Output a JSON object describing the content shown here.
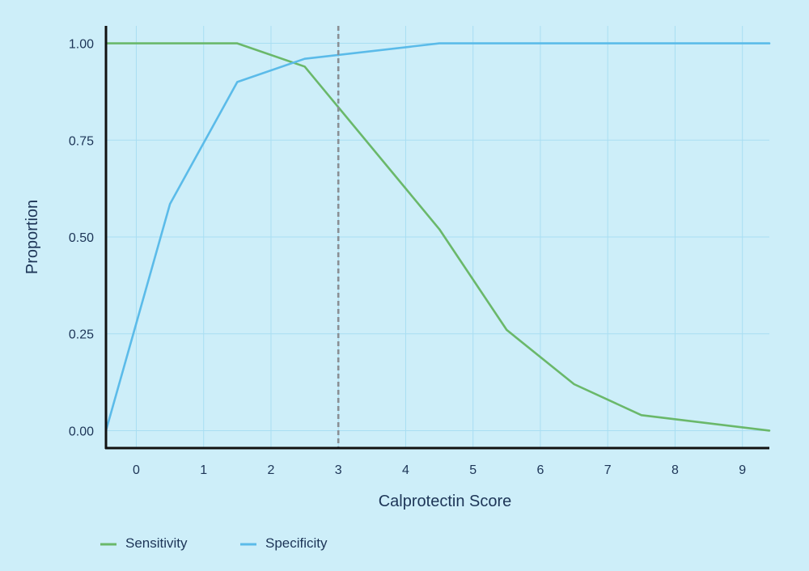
{
  "chart_data": {
    "type": "line",
    "title": "",
    "xlabel": "Calprotectin Score",
    "ylabel": "Proportion",
    "xlim": [
      -0.45,
      9.4
    ],
    "ylim": [
      -0.045,
      1.045
    ],
    "xticks": [
      0,
      1,
      2,
      3,
      4,
      5,
      6,
      7,
      8,
      9
    ],
    "xtick_labels": [
      "0",
      "1",
      "2",
      "3",
      "4",
      "5",
      "6",
      "7",
      "8",
      "9"
    ],
    "yticks": [
      0,
      0.25,
      0.5,
      0.75,
      1.0
    ],
    "ytick_labels": [
      "0.00",
      "0.25",
      "0.50",
      "0.75",
      "1.00"
    ],
    "grid": true,
    "cutoff": 3,
    "legend_position": "bottom-left",
    "series": [
      {
        "name": "Sensitivity",
        "color": "#6ab86a",
        "x": [
          -0.45,
          1.5,
          2.5,
          4.5,
          5.5,
          6.5,
          7.5,
          9.4
        ],
        "values": [
          1.0,
          1.0,
          0.94,
          0.52,
          0.26,
          0.12,
          0.04,
          0.0
        ]
      },
      {
        "name": "Specificity",
        "color": "#5bbbe9",
        "x": [
          -0.45,
          0.5,
          1.5,
          2.5,
          4.5,
          9.4
        ],
        "values": [
          0.0,
          0.585,
          0.9,
          0.96,
          1.0,
          1.0
        ]
      }
    ],
    "reference_line": {
      "x": 3,
      "color": "#8a8f94",
      "style": "dashed"
    }
  }
}
